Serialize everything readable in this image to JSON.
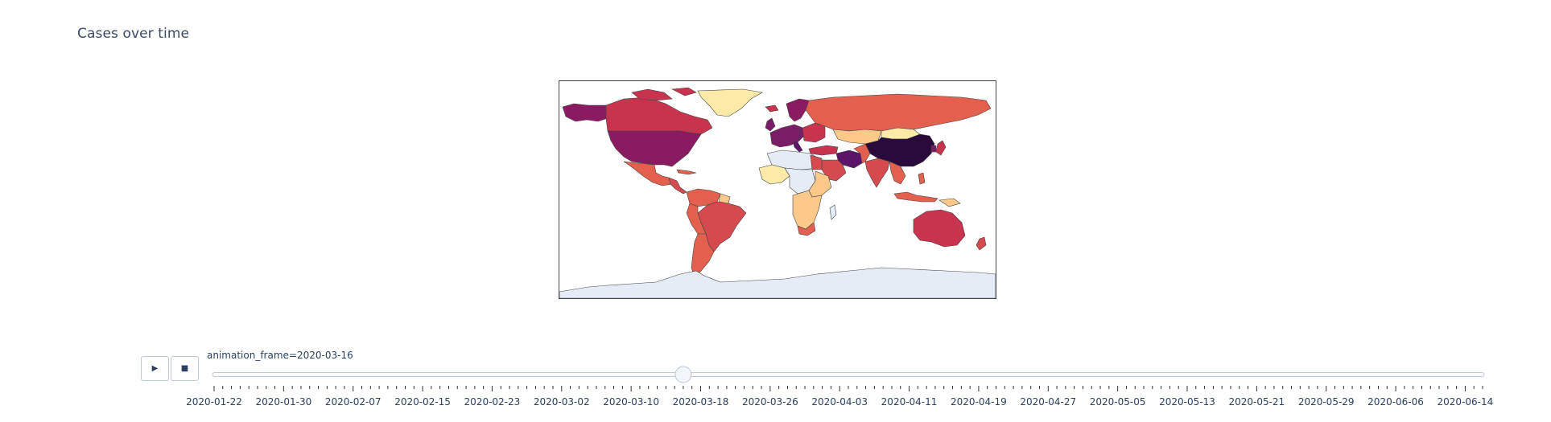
{
  "title": "Cases over time",
  "controls": {
    "play_icon": "▶",
    "stop_icon": "■"
  },
  "slider": {
    "label_prefix": "animation_frame=",
    "current_value": "2020-03-16",
    "label": "animation_frame=2020-03-16",
    "total_steps": 147,
    "current_index": 54
  },
  "chart_data": {
    "type": "choropleth",
    "title": "Cases over time",
    "projection": "equirectangular",
    "colorscale": "magma reversed (light yellow = low, dark purple = high)",
    "no_data_color": "#e5ecf6",
    "frame": "2020-03-16",
    "tick_labels": [
      "2020-01-22",
      "2020-01-30",
      "2020-02-07",
      "2020-02-15",
      "2020-02-23",
      "2020-03-02",
      "2020-03-10",
      "2020-03-18",
      "2020-03-26",
      "2020-04-03",
      "2020-04-11",
      "2020-04-19",
      "2020-04-27",
      "2020-05-05",
      "2020-05-13",
      "2020-05-21",
      "2020-05-29",
      "2020-06-06",
      "2020-06-14"
    ],
    "regions": [
      {
        "name": "China",
        "level": "highest",
        "color": "#2a0a3a"
      },
      {
        "name": "Iran",
        "level": "very high",
        "color": "#5c1468"
      },
      {
        "name": "Italy",
        "level": "very high",
        "color": "#5c1468"
      },
      {
        "name": "United States",
        "level": "high",
        "color": "#8a1a62"
      },
      {
        "name": "Alaska",
        "level": "high",
        "color": "#8a1a62"
      },
      {
        "name": "Western Europe",
        "level": "high",
        "color": "#7a1c66"
      },
      {
        "name": "Canada",
        "level": "medium-high",
        "color": "#c8344e"
      },
      {
        "name": "Russia",
        "level": "medium",
        "color": "#e3604e"
      },
      {
        "name": "Australia",
        "level": "medium-high",
        "color": "#c8344e"
      },
      {
        "name": "Brazil",
        "level": "medium-high",
        "color": "#d44a4e"
      },
      {
        "name": "Greenland",
        "level": "low",
        "color": "#fde9a8"
      },
      {
        "name": "Antarctica",
        "level": "no data",
        "color": "#e5ecf6"
      }
    ]
  }
}
